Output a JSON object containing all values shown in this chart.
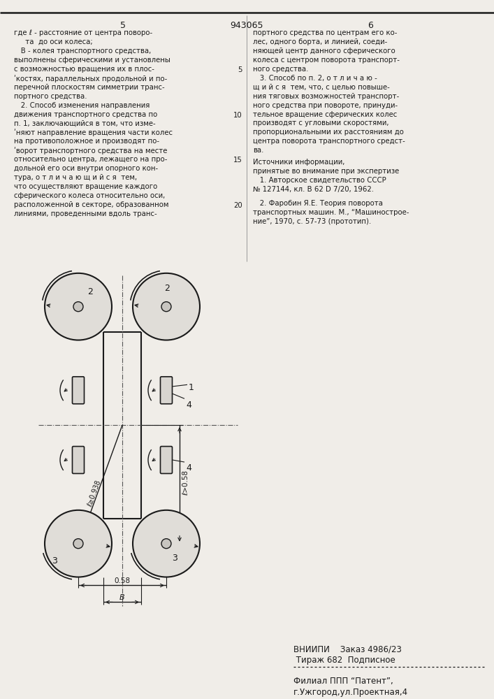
{
  "page_number_left": "5",
  "page_number_center": "943065",
  "page_number_right": "6",
  "text_left": [
    "где ℓ - расстояние от центра поворо-",
    "     та  до оси колеса;",
    "   B - колея транспортного средства,",
    "выполнены сферическими и установлены",
    "с возможностью вращения их в плос-",
    "ʹкостях, параллельных продольной и по-",
    "перечной плоскостям симметрии транс-",
    "портного средства.",
    "   2. Способ изменения направления",
    "движения транспортного средства по",
    "п. 1, заключающийся в том, что изме-",
    "ʹняют направление вращения части колес",
    "на противоположное и производят по-",
    "ʹворот транспортного средства на месте",
    "относительно центра, лежащего на про-",
    "дольной его оси внутри опорного кон-",
    "тура, о т л и ч а ю щ и й с я  тем,",
    "что осуществляют вращение каждого",
    "сферического колеса относительно оси,",
    "расположенной в секторе, образованном",
    "линиями, проведенными вдоль транс-"
  ],
  "text_right": [
    "портного средства по центрам его ко-",
    "лес, одного борта, и линией, соеди-",
    "няющей центр данного сферического",
    "колеса с центром поворота транспорт-",
    "ного средства.",
    "   3. Способ по п. 2, о т л и ч а ю -",
    "щ и й с я  тем, что, с целью повыше-",
    "ния тяговых возможностей транспорт-",
    "ного средства при повороте, принуди-",
    "тельное вращение сферических колес",
    "производят с угловыми скоростями,",
    "пропорциональными их расстояниям до",
    "центра поворота транспортного средст-",
    "ва."
  ],
  "sources_title": "Источники информации,",
  "sources_subtitle": "принятые во внимание при экспертизе",
  "source1": "   1. Авторское свидетельство СССР",
  "source1b": "№ 127144, кл. B 62 D 7/20, 1962.",
  "source2": "   2. Фаробин Я.Е. Теория поворота",
  "source2b": "транспортных машин. М., “Машинострое-",
  "source2c": "ние”, 1970, с. 57-73 (прототип).",
  "footer1": "ВНИИПИ    Заказ 4986/23",
  "footer2": " Тираж 682  Подписное",
  "footer3": "Филиал ППП “Патент”,",
  "footer4": "г.Ужгород,ул.Проектная,4",
  "bg_color": "#f0ede8",
  "line_color": "#1a1a1a",
  "dim_label_b": "B",
  "dim_label_058": "0.58",
  "dim_label_l058": "ℓ>0.58",
  "dim_label_l0938": "ℓ≥0.938"
}
